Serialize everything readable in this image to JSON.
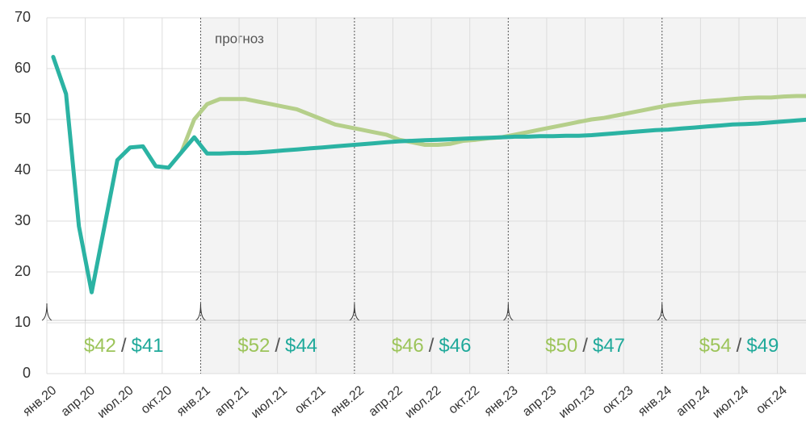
{
  "chart_data": {
    "type": "line",
    "categories": [
      "янв.20",
      null,
      null,
      "апр.20",
      null,
      null,
      "июл.20",
      null,
      null,
      "окт.20",
      null,
      null,
      "янв.21",
      null,
      null,
      "апр.21",
      null,
      null,
      "июл.21",
      null,
      null,
      "окт.21",
      null,
      null,
      "янв.22",
      null,
      null,
      "апр.22",
      null,
      null,
      "июл.22",
      null,
      null,
      "окт.22",
      null,
      null,
      "янв.23",
      null,
      null,
      "апр.23",
      null,
      null,
      "июл.23",
      null,
      null,
      "окт.23",
      null,
      null,
      "янв.24",
      null,
      null,
      "апр.24",
      null,
      null,
      "июл.24",
      null,
      null,
      "окт.24",
      null,
      null
    ],
    "series": [
      {
        "color": "#b5cf8a",
        "values": [
          null,
          null,
          null,
          null,
          null,
          null,
          null,
          null,
          null,
          null,
          43.5,
          50,
          53,
          54,
          54,
          54,
          53.5,
          53,
          52.5,
          52,
          51,
          50,
          49,
          48.5,
          48,
          47.5,
          47,
          46,
          45.5,
          45,
          45,
          45.2,
          45.8,
          46,
          46.3,
          46.5,
          47,
          47.5,
          48,
          48.5,
          49,
          49.5,
          50,
          50.3,
          50.8,
          51.3,
          51.8,
          52.3,
          52.8,
          53.1,
          53.4,
          53.6,
          53.8,
          54,
          54.2,
          54.3,
          54.3,
          54.5,
          54.6,
          54.6
        ]
      },
      {
        "color": "#2bb3a3",
        "values": [
          62.3,
          55,
          29,
          16,
          29,
          42,
          44.5,
          44.7,
          40.8,
          40.5,
          43.5,
          46.5,
          43.3,
          43.3,
          43.4,
          43.4,
          43.5,
          43.7,
          43.9,
          44.1,
          44.3,
          44.5,
          44.7,
          44.9,
          45.1,
          45.3,
          45.5,
          45.7,
          45.8,
          45.9,
          46,
          46.1,
          46.2,
          46.3,
          46.4,
          46.5,
          46.6,
          46.6,
          46.7,
          46.7,
          46.8,
          46.8,
          46.9,
          47.1,
          47.3,
          47.5,
          47.7,
          47.9,
          48,
          48.2,
          48.4,
          48.6,
          48.8,
          49,
          49.1,
          49.2,
          49.4,
          49.6,
          49.8,
          50
        ]
      }
    ],
    "ylim": [
      0,
      70
    ],
    "yticks": [
      0,
      10,
      20,
      30,
      40,
      50,
      60,
      70
    ],
    "grid": true,
    "annotation": "прогноз",
    "separator": "/",
    "periods": [
      {
        "a": "$42",
        "b": "$41"
      },
      {
        "a": "$52",
        "b": "$44"
      },
      {
        "a": "$46",
        "b": "$46"
      },
      {
        "a": "$50",
        "b": "$47"
      },
      {
        "a": "$54",
        "b": "$49"
      }
    ]
  }
}
